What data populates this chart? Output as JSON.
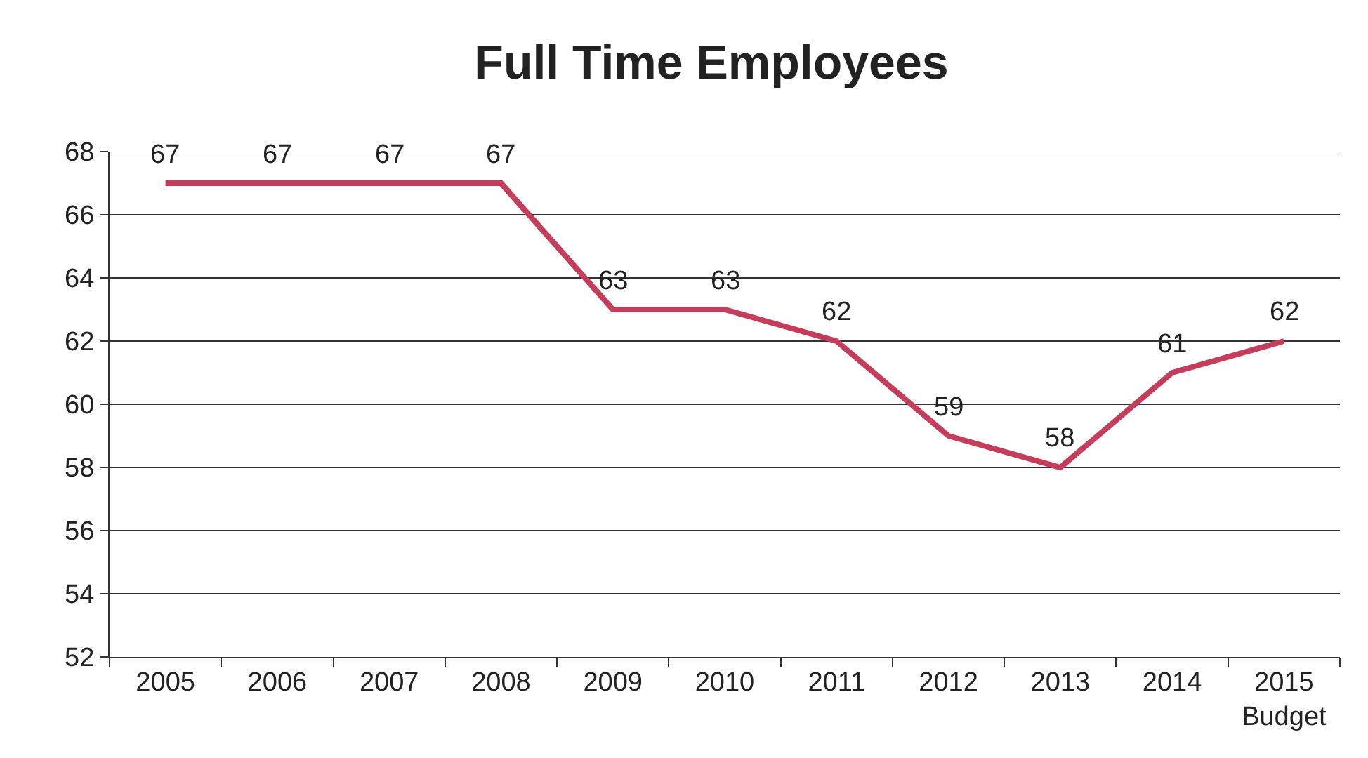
{
  "chart_data": {
    "type": "line",
    "title": "Full Time Employees",
    "categories": [
      "2005",
      "2006",
      "2007",
      "2008",
      "2009",
      "2010",
      "2011",
      "2012",
      "2013",
      "2014",
      "2015\nBudget"
    ],
    "series": [
      {
        "color": "#c43e5c",
        "values": [
          67,
          67,
          67,
          67,
          63,
          63,
          62,
          59,
          58,
          61,
          62
        ]
      }
    ],
    "ylim": [
      52,
      68
    ],
    "yticks": [
      52,
      54,
      56,
      58,
      60,
      62,
      64,
      66,
      68
    ],
    "grid": "y",
    "data_labels": true,
    "marker": "none",
    "line_style": "solid"
  }
}
